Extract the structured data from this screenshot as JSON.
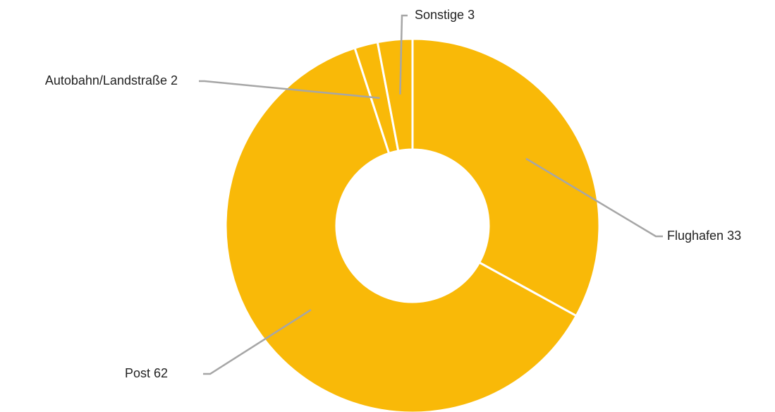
{
  "chart_data": {
    "type": "donut",
    "categories": [
      "Flughafen",
      "Post",
      "Autobahn/Landstraße",
      "Sonstige"
    ],
    "values": [
      33,
      62,
      2,
      3
    ],
    "color": "#f9b908"
  }
}
